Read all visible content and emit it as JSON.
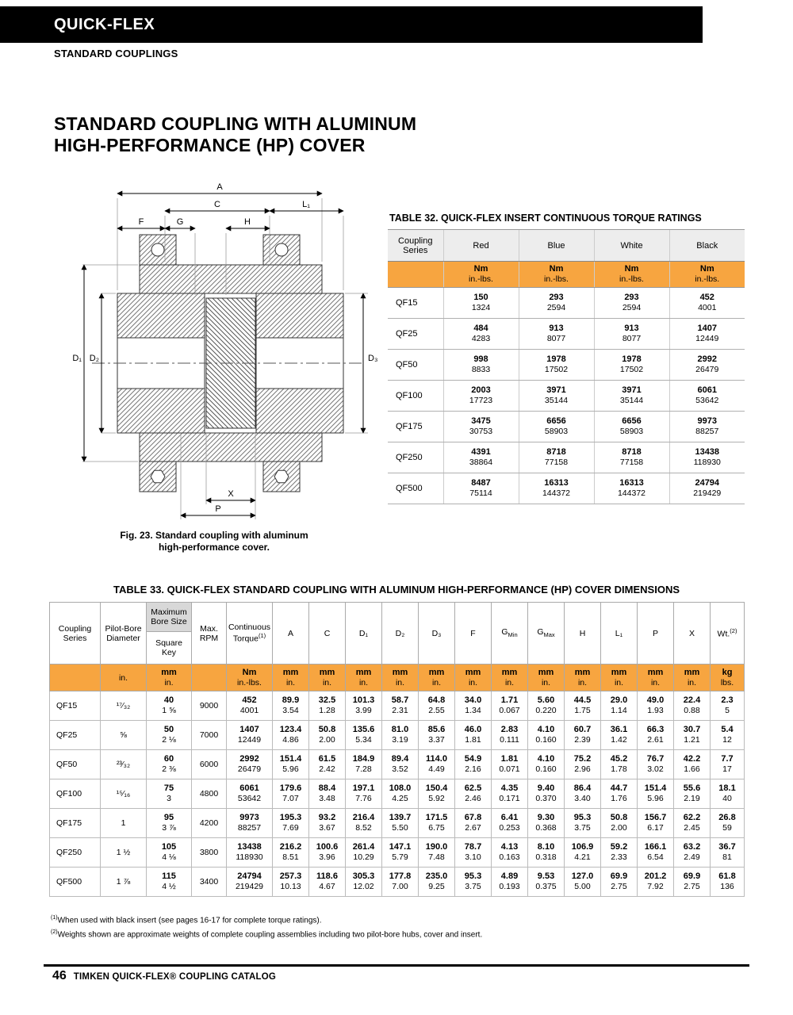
{
  "page": {
    "brand": "QUICK-FLEX",
    "section": "STANDARD COUPLINGS",
    "title_line1": "STANDARD COUPLING WITH ALUMINUM",
    "title_line2": "HIGH-PERFORMANCE (HP) COVER",
    "footer_page": "46",
    "footer_text": "TIMKEN QUICK-FLEX® COUPLING CATALOG"
  },
  "colors": {
    "accent_orange": "#F7A540",
    "header_gray": "#EDEDED",
    "band_gray": "#D8D8D8"
  },
  "figure": {
    "caption_line1": "Fig. 23. Standard coupling with aluminum",
    "caption_line2": "high-performance cover.",
    "labels": {
      "a": "A",
      "c": "C",
      "l1": "L₁",
      "f": "F",
      "g": "G",
      "h": "H",
      "d1": "D₁",
      "d2": "D₂",
      "d3": "D₃",
      "x": "X",
      "p": "P"
    }
  },
  "table32": {
    "title": "TABLE 32. QUICK-FLEX INSERT CONTINUOUS TORQUE RATINGS",
    "col_headers": [
      "Coupling Series",
      "Red",
      "Blue",
      "White",
      "Black"
    ],
    "units": {
      "top": "Nm",
      "bottom": "in.-lbs."
    },
    "rows": [
      {
        "series": "QF15",
        "values": [
          [
            "150",
            "1324"
          ],
          [
            "293",
            "2594"
          ],
          [
            "293",
            "2594"
          ],
          [
            "452",
            "4001"
          ]
        ]
      },
      {
        "series": "QF25",
        "values": [
          [
            "484",
            "4283"
          ],
          [
            "913",
            "8077"
          ],
          [
            "913",
            "8077"
          ],
          [
            "1407",
            "12449"
          ]
        ]
      },
      {
        "series": "QF50",
        "values": [
          [
            "998",
            "8833"
          ],
          [
            "1978",
            "17502"
          ],
          [
            "1978",
            "17502"
          ],
          [
            "2992",
            "26479"
          ]
        ]
      },
      {
        "series": "QF100",
        "values": [
          [
            "2003",
            "17723"
          ],
          [
            "3971",
            "35144"
          ],
          [
            "3971",
            "35144"
          ],
          [
            "6061",
            "53642"
          ]
        ]
      },
      {
        "series": "QF175",
        "values": [
          [
            "3475",
            "30753"
          ],
          [
            "6656",
            "58903"
          ],
          [
            "6656",
            "58903"
          ],
          [
            "9973",
            "88257"
          ]
        ]
      },
      {
        "series": "QF250",
        "values": [
          [
            "4391",
            "38864"
          ],
          [
            "8718",
            "77158"
          ],
          [
            "8718",
            "77158"
          ],
          [
            "13438",
            "118930"
          ]
        ]
      },
      {
        "series": "QF500",
        "values": [
          [
            "8487",
            "75114"
          ],
          [
            "16313",
            "144372"
          ],
          [
            "16313",
            "144372"
          ],
          [
            "24794",
            "219429"
          ]
        ]
      }
    ]
  },
  "table33": {
    "title": "TABLE 33. QUICK-FLEX STANDARD COUPLING WITH ALUMINUM HIGH-PERFORMANCE (HP) COVER DIMENSIONS",
    "columns": [
      {
        "label": "Coupling Series",
        "units": []
      },
      {
        "label": "Pilot-Bore Diameter",
        "units": [
          "in."
        ]
      },
      {
        "band": "Maximum Bore Size",
        "label": "Square Key",
        "units": [
          "mm",
          "in."
        ]
      },
      {
        "label": "Max. RPM",
        "units": []
      },
      {
        "label": "Continuous Torque",
        "sup": "(1)",
        "units": [
          "Nm",
          "in.-lbs."
        ]
      },
      {
        "label": "A",
        "units": [
          "mm",
          "in."
        ]
      },
      {
        "label": "C",
        "units": [
          "mm",
          "in."
        ]
      },
      {
        "label": "D₁",
        "units": [
          "mm",
          "in."
        ]
      },
      {
        "label": "D₂",
        "units": [
          "mm",
          "in."
        ]
      },
      {
        "label": "D₃",
        "units": [
          "mm",
          "in."
        ]
      },
      {
        "label": "F",
        "units": [
          "mm",
          "in."
        ]
      },
      {
        "label": "G",
        "sub": "Min",
        "units": [
          "mm",
          "in."
        ]
      },
      {
        "label": "G",
        "sub": "Max",
        "units": [
          "mm",
          "in."
        ]
      },
      {
        "label": "H",
        "units": [
          "mm",
          "in."
        ]
      },
      {
        "label": "L₁",
        "units": [
          "mm",
          "in."
        ]
      },
      {
        "label": "P",
        "units": [
          "mm",
          "in."
        ]
      },
      {
        "label": "X",
        "units": [
          "mm",
          "in."
        ]
      },
      {
        "label": "Wt.",
        "sup": "(2)",
        "units": [
          "kg",
          "lbs."
        ]
      }
    ],
    "rows": [
      {
        "cells": [
          "QF15",
          "¹⁷⁄₃₂",
          [
            "40",
            "1 ⅝"
          ],
          "9000",
          [
            "452",
            "4001"
          ],
          [
            "89.9",
            "3.54"
          ],
          [
            "32.5",
            "1.28"
          ],
          [
            "101.3",
            "3.99"
          ],
          [
            "58.7",
            "2.31"
          ],
          [
            "64.8",
            "2.55"
          ],
          [
            "34.0",
            "1.34"
          ],
          [
            "1.71",
            "0.067"
          ],
          [
            "5.60",
            "0.220"
          ],
          [
            "44.5",
            "1.75"
          ],
          [
            "29.0",
            "1.14"
          ],
          [
            "49.0",
            "1.93"
          ],
          [
            "22.4",
            "0.88"
          ],
          [
            "2.3",
            "5"
          ]
        ]
      },
      {
        "cells": [
          "QF25",
          "⅝",
          [
            "50",
            "2 ⅛"
          ],
          "7000",
          [
            "1407",
            "12449"
          ],
          [
            "123.4",
            "4.86"
          ],
          [
            "50.8",
            "2.00"
          ],
          [
            "135.6",
            "5.34"
          ],
          [
            "81.0",
            "3.19"
          ],
          [
            "85.6",
            "3.37"
          ],
          [
            "46.0",
            "1.81"
          ],
          [
            "2.83",
            "0.111"
          ],
          [
            "4.10",
            "0.160"
          ],
          [
            "60.7",
            "2.39"
          ],
          [
            "36.1",
            "1.42"
          ],
          [
            "66.3",
            "2.61"
          ],
          [
            "30.7",
            "1.21"
          ],
          [
            "5.4",
            "12"
          ]
        ]
      },
      {
        "cells": [
          "QF50",
          "²³⁄₃₂",
          [
            "60",
            "2 ⅜"
          ],
          "6000",
          [
            "2992",
            "26479"
          ],
          [
            "151.4",
            "5.96"
          ],
          [
            "61.5",
            "2.42"
          ],
          [
            "184.9",
            "7.28"
          ],
          [
            "89.4",
            "3.52"
          ],
          [
            "114.0",
            "4.49"
          ],
          [
            "54.9",
            "2.16"
          ],
          [
            "1.81",
            "0.071"
          ],
          [
            "4.10",
            "0.160"
          ],
          [
            "75.2",
            "2.96"
          ],
          [
            "45.2",
            "1.78"
          ],
          [
            "76.7",
            "3.02"
          ],
          [
            "42.2",
            "1.66"
          ],
          [
            "7.7",
            "17"
          ]
        ]
      },
      {
        "cells": [
          "QF100",
          "¹⁵⁄₁₆",
          [
            "75",
            "3"
          ],
          "4800",
          [
            "6061",
            "53642"
          ],
          [
            "179.6",
            "7.07"
          ],
          [
            "88.4",
            "3.48"
          ],
          [
            "197.1",
            "7.76"
          ],
          [
            "108.0",
            "4.25"
          ],
          [
            "150.4",
            "5.92"
          ],
          [
            "62.5",
            "2.46"
          ],
          [
            "4.35",
            "0.171"
          ],
          [
            "9.40",
            "0.370"
          ],
          [
            "86.4",
            "3.40"
          ],
          [
            "44.7",
            "1.76"
          ],
          [
            "151.4",
            "5.96"
          ],
          [
            "55.6",
            "2.19"
          ],
          [
            "18.1",
            "40"
          ]
        ]
      },
      {
        "cells": [
          "QF175",
          "1",
          [
            "95",
            "3 ⅞"
          ],
          "4200",
          [
            "9973",
            "88257"
          ],
          [
            "195.3",
            "7.69"
          ],
          [
            "93.2",
            "3.67"
          ],
          [
            "216.4",
            "8.52"
          ],
          [
            "139.7",
            "5.50"
          ],
          [
            "171.5",
            "6.75"
          ],
          [
            "67.8",
            "2.67"
          ],
          [
            "6.41",
            "0.253"
          ],
          [
            "9.30",
            "0.368"
          ],
          [
            "95.3",
            "3.75"
          ],
          [
            "50.8",
            "2.00"
          ],
          [
            "156.7",
            "6.17"
          ],
          [
            "62.2",
            "2.45"
          ],
          [
            "26.8",
            "59"
          ]
        ]
      },
      {
        "cells": [
          "QF250",
          "1 ½",
          [
            "105",
            "4 ⅛"
          ],
          "3800",
          [
            "13438",
            "118930"
          ],
          [
            "216.2",
            "8.51"
          ],
          [
            "100.6",
            "3.96"
          ],
          [
            "261.4",
            "10.29"
          ],
          [
            "147.1",
            "5.79"
          ],
          [
            "190.0",
            "7.48"
          ],
          [
            "78.7",
            "3.10"
          ],
          [
            "4.13",
            "0.163"
          ],
          [
            "8.10",
            "0.318"
          ],
          [
            "106.9",
            "4.21"
          ],
          [
            "59.2",
            "2.33"
          ],
          [
            "166.1",
            "6.54"
          ],
          [
            "63.2",
            "2.49"
          ],
          [
            "36.7",
            "81"
          ]
        ]
      },
      {
        "cells": [
          "QF500",
          "1 ⅞",
          [
            "115",
            "4 ½"
          ],
          "3400",
          [
            "24794",
            "219429"
          ],
          [
            "257.3",
            "10.13"
          ],
          [
            "118.6",
            "4.67"
          ],
          [
            "305.3",
            "12.02"
          ],
          [
            "177.8",
            "7.00"
          ],
          [
            "235.0",
            "9.25"
          ],
          [
            "95.3",
            "3.75"
          ],
          [
            "4.89",
            "0.193"
          ],
          [
            "9.53",
            "0.375"
          ],
          [
            "127.0",
            "5.00"
          ],
          [
            "69.9",
            "2.75"
          ],
          [
            "201.2",
            "7.92"
          ],
          [
            "69.9",
            "2.75"
          ],
          [
            "61.8",
            "136"
          ]
        ]
      }
    ]
  },
  "footnotes": [
    {
      "sup": "(1)",
      "text": "When used with black insert (see pages 16-17 for complete torque ratings)."
    },
    {
      "sup": "(2)",
      "text": "Weights shown are approximate weights of complete coupling assemblies including two pilot-bore hubs, cover and insert."
    }
  ]
}
